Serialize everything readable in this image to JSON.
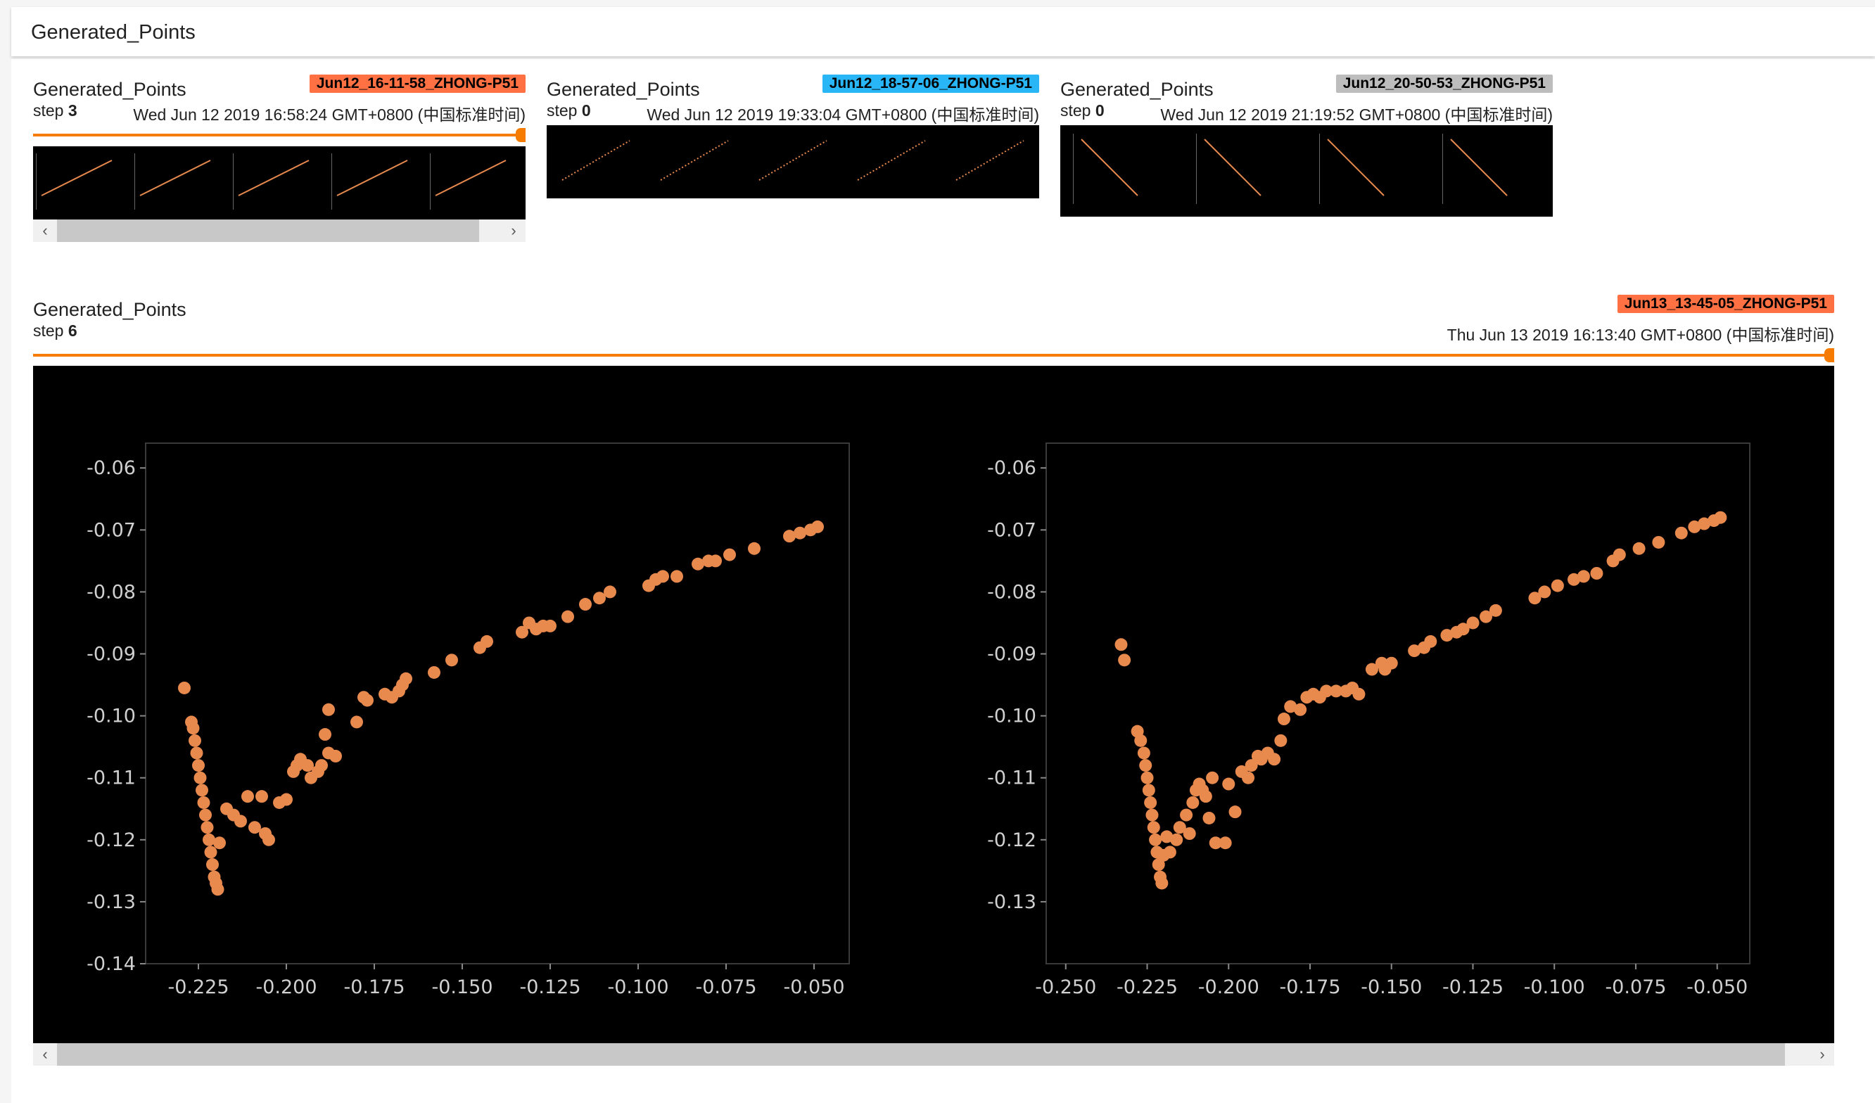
{
  "header": {
    "title": "Generated_Points"
  },
  "cards": [
    {
      "title": "Generated_Points",
      "run": "Jun12_16-11-58_ZHONG-P51",
      "run_color": "#ff7043",
      "step_label": "step",
      "step": "3",
      "wall_time": "Wed Jun 12 2019 16:58:24 GMT+0800 (中国标准时间)",
      "scroll_left": "‹",
      "scroll_right": "›"
    },
    {
      "title": "Generated_Points",
      "run": "Jun12_18-57-06_ZHONG-P51",
      "run_color": "#29b6f6",
      "step_label": "step",
      "step": "0",
      "wall_time": "Wed Jun 12 2019 19:33:04 GMT+0800 (中国标准时间)"
    },
    {
      "title": "Generated_Points",
      "run": "Jun12_20-50-53_ZHONG-P51",
      "run_color": "#bdbdbd",
      "step_label": "step",
      "step": "0",
      "wall_time": "Wed Jun 12 2019 21:19:52 GMT+0800 (中国标准时间)"
    }
  ],
  "main_card": {
    "title": "Generated_Points",
    "run": "Jun13_13-45-05_ZHONG-P51",
    "run_color": "#ff7043",
    "step_label": "step",
    "step": "6",
    "wall_time": "Thu Jun 13 2019 16:13:40 GMT+0800 (中国标准时间)",
    "scroll_left": "‹",
    "scroll_right": "›"
  },
  "chart_data": [
    {
      "type": "scatter",
      "color": "#e8894d",
      "xlim": [
        -0.24,
        -0.04
      ],
      "ylim": [
        -0.14,
        -0.056
      ],
      "x_ticks": [
        "-0.225",
        "-0.200",
        "-0.175",
        "-0.150",
        "-0.125",
        "-0.100",
        "-0.075",
        "-0.050"
      ],
      "y_ticks": [
        "-0.06",
        "-0.07",
        "-0.08",
        "-0.09",
        "-0.10",
        "-0.11",
        "-0.12",
        "-0.13",
        "-0.14"
      ],
      "x_tick_values": [
        -0.225,
        -0.2,
        -0.175,
        -0.15,
        -0.125,
        -0.1,
        -0.075,
        -0.05
      ],
      "y_tick_values": [
        -0.06,
        -0.07,
        -0.08,
        -0.09,
        -0.1,
        -0.11,
        -0.12,
        -0.13,
        -0.14
      ],
      "points": [
        [
          -0.229,
          -0.0955
        ],
        [
          -0.227,
          -0.101
        ],
        [
          -0.2265,
          -0.102
        ],
        [
          -0.226,
          -0.104
        ],
        [
          -0.2255,
          -0.106
        ],
        [
          -0.225,
          -0.108
        ],
        [
          -0.2245,
          -0.11
        ],
        [
          -0.224,
          -0.112
        ],
        [
          -0.2235,
          -0.114
        ],
        [
          -0.223,
          -0.116
        ],
        [
          -0.2225,
          -0.118
        ],
        [
          -0.222,
          -0.12
        ],
        [
          -0.2215,
          -0.122
        ],
        [
          -0.221,
          -0.124
        ],
        [
          -0.2205,
          -0.126
        ],
        [
          -0.22,
          -0.127
        ],
        [
          -0.2195,
          -0.128
        ],
        [
          -0.219,
          -0.1205
        ],
        [
          -0.217,
          -0.115
        ],
        [
          -0.215,
          -0.116
        ],
        [
          -0.213,
          -0.117
        ],
        [
          -0.211,
          -0.113
        ],
        [
          -0.209,
          -0.118
        ],
        [
          -0.207,
          -0.113
        ],
        [
          -0.206,
          -0.119
        ],
        [
          -0.205,
          -0.12
        ],
        [
          -0.202,
          -0.114
        ],
        [
          -0.2,
          -0.1135
        ],
        [
          -0.198,
          -0.109
        ],
        [
          -0.197,
          -0.108
        ],
        [
          -0.196,
          -0.107
        ],
        [
          -0.194,
          -0.108
        ],
        [
          -0.193,
          -0.11
        ],
        [
          -0.191,
          -0.109
        ],
        [
          -0.19,
          -0.108
        ],
        [
          -0.188,
          -0.106
        ],
        [
          -0.186,
          -0.1065
        ],
        [
          -0.189,
          -0.103
        ],
        [
          -0.188,
          -0.099
        ],
        [
          -0.18,
          -0.101
        ],
        [
          -0.178,
          -0.097
        ],
        [
          -0.177,
          -0.0975
        ],
        [
          -0.172,
          -0.0965
        ],
        [
          -0.17,
          -0.097
        ],
        [
          -0.168,
          -0.096
        ],
        [
          -0.167,
          -0.095
        ],
        [
          -0.166,
          -0.094
        ],
        [
          -0.158,
          -0.093
        ],
        [
          -0.153,
          -0.091
        ],
        [
          -0.145,
          -0.089
        ],
        [
          -0.143,
          -0.088
        ],
        [
          -0.133,
          -0.0865
        ],
        [
          -0.131,
          -0.085
        ],
        [
          -0.129,
          -0.086
        ],
        [
          -0.127,
          -0.0855
        ],
        [
          -0.125,
          -0.0855
        ],
        [
          -0.12,
          -0.084
        ],
        [
          -0.115,
          -0.082
        ],
        [
          -0.111,
          -0.081
        ],
        [
          -0.108,
          -0.08
        ],
        [
          -0.097,
          -0.079
        ],
        [
          -0.095,
          -0.078
        ],
        [
          -0.093,
          -0.0775
        ],
        [
          -0.089,
          -0.0775
        ],
        [
          -0.083,
          -0.0755
        ],
        [
          -0.08,
          -0.075
        ],
        [
          -0.078,
          -0.075
        ],
        [
          -0.074,
          -0.074
        ],
        [
          -0.067,
          -0.073
        ],
        [
          -0.057,
          -0.071
        ],
        [
          -0.054,
          -0.0705
        ],
        [
          -0.051,
          -0.07
        ],
        [
          -0.049,
          -0.0695
        ]
      ]
    },
    {
      "type": "scatter",
      "color": "#e8894d",
      "xlim": [
        -0.256,
        -0.04
      ],
      "ylim": [
        -0.14,
        -0.056
      ],
      "x_ticks": [
        "-0.250",
        "-0.225",
        "-0.200",
        "-0.175",
        "-0.150",
        "-0.125",
        "-0.100",
        "-0.075",
        "-0.050"
      ],
      "y_ticks": [
        "-0.06",
        "-0.07",
        "-0.08",
        "-0.09",
        "-0.10",
        "-0.11",
        "-0.12",
        "-0.13"
      ],
      "x_tick_values": [
        -0.25,
        -0.225,
        -0.2,
        -0.175,
        -0.15,
        -0.125,
        -0.1,
        -0.075,
        -0.05
      ],
      "y_tick_values": [
        -0.06,
        -0.07,
        -0.08,
        -0.09,
        -0.1,
        -0.11,
        -0.12,
        -0.13
      ],
      "points": [
        [
          -0.233,
          -0.0885
        ],
        [
          -0.232,
          -0.091
        ],
        [
          -0.228,
          -0.1025
        ],
        [
          -0.227,
          -0.104
        ],
        [
          -0.226,
          -0.106
        ],
        [
          -0.2255,
          -0.108
        ],
        [
          -0.225,
          -0.11
        ],
        [
          -0.2245,
          -0.112
        ],
        [
          -0.224,
          -0.114
        ],
        [
          -0.2235,
          -0.116
        ],
        [
          -0.223,
          -0.118
        ],
        [
          -0.2225,
          -0.12
        ],
        [
          -0.222,
          -0.122
        ],
        [
          -0.2215,
          -0.124
        ],
        [
          -0.221,
          -0.126
        ],
        [
          -0.2205,
          -0.127
        ],
        [
          -0.22,
          -0.1225
        ],
        [
          -0.219,
          -0.1195
        ],
        [
          -0.218,
          -0.122
        ],
        [
          -0.216,
          -0.12
        ],
        [
          -0.215,
          -0.118
        ],
        [
          -0.213,
          -0.116
        ],
        [
          -0.212,
          -0.119
        ],
        [
          -0.211,
          -0.114
        ],
        [
          -0.21,
          -0.112
        ],
        [
          -0.209,
          -0.111
        ],
        [
          -0.208,
          -0.112
        ],
        [
          -0.207,
          -0.113
        ],
        [
          -0.206,
          -0.1165
        ],
        [
          -0.205,
          -0.11
        ],
        [
          -0.204,
          -0.1205
        ],
        [
          -0.201,
          -0.1205
        ],
        [
          -0.2,
          -0.111
        ],
        [
          -0.198,
          -0.1155
        ],
        [
          -0.196,
          -0.109
        ],
        [
          -0.194,
          -0.11
        ],
        [
          -0.193,
          -0.108
        ],
        [
          -0.191,
          -0.1065
        ],
        [
          -0.19,
          -0.107
        ],
        [
          -0.188,
          -0.106
        ],
        [
          -0.186,
          -0.107
        ],
        [
          -0.184,
          -0.104
        ],
        [
          -0.183,
          -0.1005
        ],
        [
          -0.181,
          -0.0985
        ],
        [
          -0.178,
          -0.099
        ],
        [
          -0.176,
          -0.097
        ],
        [
          -0.174,
          -0.0965
        ],
        [
          -0.172,
          -0.097
        ],
        [
          -0.17,
          -0.096
        ],
        [
          -0.167,
          -0.096
        ],
        [
          -0.164,
          -0.096
        ],
        [
          -0.162,
          -0.0955
        ],
        [
          -0.16,
          -0.0965
        ],
        [
          -0.156,
          -0.0925
        ],
        [
          -0.153,
          -0.0915
        ],
        [
          -0.152,
          -0.0925
        ],
        [
          -0.15,
          -0.0915
        ],
        [
          -0.143,
          -0.0895
        ],
        [
          -0.14,
          -0.089
        ],
        [
          -0.138,
          -0.088
        ],
        [
          -0.133,
          -0.087
        ],
        [
          -0.13,
          -0.0865
        ],
        [
          -0.128,
          -0.086
        ],
        [
          -0.125,
          -0.085
        ],
        [
          -0.121,
          -0.084
        ],
        [
          -0.118,
          -0.083
        ],
        [
          -0.106,
          -0.081
        ],
        [
          -0.103,
          -0.08
        ],
        [
          -0.099,
          -0.079
        ],
        [
          -0.094,
          -0.078
        ],
        [
          -0.091,
          -0.0775
        ],
        [
          -0.087,
          -0.077
        ],
        [
          -0.082,
          -0.075
        ],
        [
          -0.08,
          -0.074
        ],
        [
          -0.074,
          -0.073
        ],
        [
          -0.068,
          -0.072
        ],
        [
          -0.061,
          -0.0705
        ],
        [
          -0.057,
          -0.0695
        ],
        [
          -0.054,
          -0.069
        ],
        [
          -0.051,
          -0.0685
        ],
        [
          -0.049,
          -0.068
        ]
      ]
    }
  ]
}
